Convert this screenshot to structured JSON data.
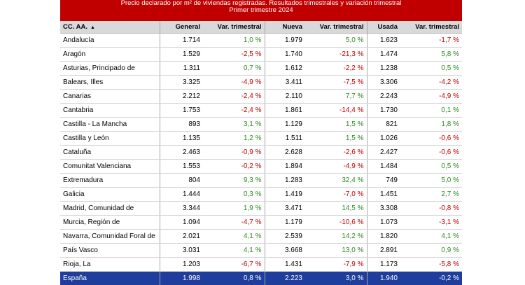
{
  "title": {
    "line1": "Precio declarado por m² de viviendas registradas. Resultados trimestrales y variación trimestral",
    "line2": "Primer trimestre 2024"
  },
  "headers": [
    "CC. AA.",
    "General",
    "Var. trimestral",
    "Nueva",
    "Var. trimestral",
    "Usada",
    "Var. trimestral"
  ],
  "sort_icon": "▲",
  "rows": [
    [
      "Andalucía",
      "1.714",
      "1,0 %",
      "1.979",
      "5,0 %",
      "1.623",
      "-1,7 %"
    ],
    [
      "Aragón",
      "1.529",
      "-2,5 %",
      "1.740",
      "-21,3 %",
      "1.474",
      "5,8 %"
    ],
    [
      "Asturias, Principado de",
      "1.311",
      "0,7 %",
      "1.612",
      "-2,2 %",
      "1.238",
      "0,5 %"
    ],
    [
      "Balears, Illes",
      "3.325",
      "-4,9 %",
      "3.411",
      "-7,5 %",
      "3.306",
      "-4,2 %"
    ],
    [
      "Canarias",
      "2.212",
      "-2,4 %",
      "2.110",
      "7,7 %",
      "2.243",
      "-4,9 %"
    ],
    [
      "Cantabria",
      "1.753",
      "-2,4 %",
      "1.861",
      "-14,4 %",
      "1.730",
      "0,1 %"
    ],
    [
      "Castilla - La Mancha",
      "893",
      "3,1 %",
      "1.129",
      "1,5 %",
      "821",
      "1,8 %"
    ],
    [
      "Castilla y León",
      "1.135",
      "1,2 %",
      "1.511",
      "1,5 %",
      "1.026",
      "-0,6 %"
    ],
    [
      "Cataluña",
      "2.463",
      "-0,9 %",
      "2.628",
      "-2,6 %",
      "2.427",
      "-0,6 %"
    ],
    [
      "Comunitat Valenciana",
      "1.553",
      "-0,2 %",
      "1.894",
      "-4,9 %",
      "1.484",
      "0,5 %"
    ],
    [
      "Extremadura",
      "804",
      "9,3 %",
      "1.283",
      "32,4 %",
      "749",
      "5,0 %"
    ],
    [
      "Galicia",
      "1.444",
      "0,3 %",
      "1.419",
      "-7,0 %",
      "1.451",
      "2,7 %"
    ],
    [
      "Madrid, Comunidad de",
      "3.344",
      "1,9 %",
      "3.471",
      "14,5 %",
      "3.308",
      "-0,8 %"
    ],
    [
      "Murcia, Región de",
      "1.094",
      "-4,7 %",
      "1.179",
      "-10,6 %",
      "1.073",
      "-3,1 %"
    ],
    [
      "Navarra, Comunidad Foral de",
      "2.021",
      "4,1 %",
      "2.539",
      "14,2 %",
      "1.820",
      "4,1 %"
    ],
    [
      "País Vasco",
      "3.031",
      "4,1 %",
      "3.668",
      "13,0 %",
      "2.891",
      "0,9 %"
    ],
    [
      "Rioja, La",
      "1.203",
      "-6,7 %",
      "1.431",
      "-7,9 %",
      "1.173",
      "-5,8 %"
    ]
  ],
  "total": [
    "España",
    "1.998",
    "0,8 %",
    "2.223",
    "3,0 %",
    "1.940",
    "-0,2 %"
  ],
  "colors": {
    "title_bg": "#c00000",
    "header_bg": "#d9d9d9",
    "total_bg": "#1f3d9c",
    "positive": "#2e8b22",
    "negative": "#c00000"
  }
}
